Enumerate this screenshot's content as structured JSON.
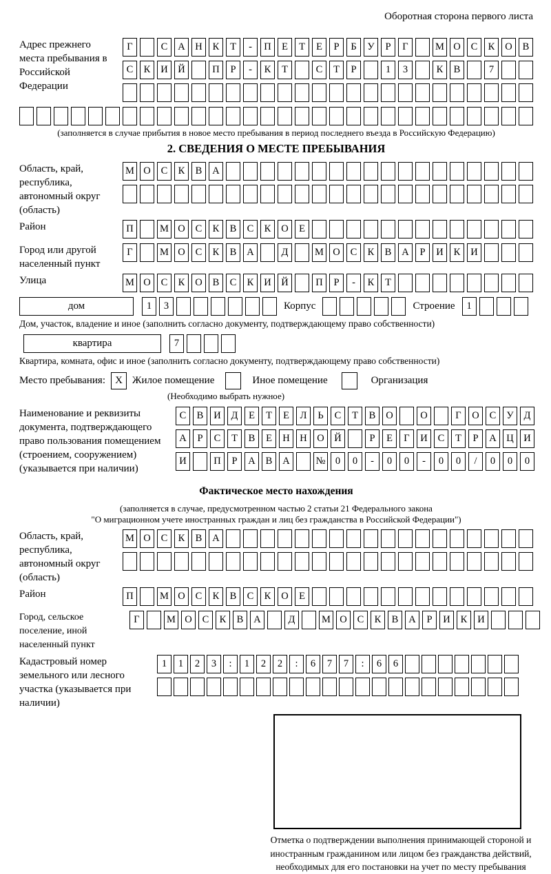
{
  "page": {
    "header_note": "Оборотная сторона первого листа"
  },
  "prev_address": {
    "label": "Адрес прежнего места пребывания в Российской Федерации",
    "row1": {
      "text": "Г САНКТ-ПЕТЕРБУРГ МОСКОВ",
      "len": 24
    },
    "row2": {
      "text": "СКИЙ ПР-КТ СТР 13 КВ 7",
      "len": 24
    },
    "row3": {
      "text": "",
      "len": 24
    },
    "row4": {
      "text": "",
      "len": 30
    },
    "note": "(заполняется в случае прибытия в новое место пребывания в период последнего въезда в Российскую Федерацию)"
  },
  "section2": {
    "title": "2. СВЕДЕНИЯ О МЕСТЕ ПРЕБЫВАНИЯ",
    "oblast": {
      "label": "Область, край, республика, автономный округ (область)",
      "row1": {
        "text": "МОСКВА",
        "len": 24
      },
      "row2": {
        "text": "",
        "len": 24
      }
    },
    "raion": {
      "label": "Район",
      "row1": {
        "text": "П МОСКВСКОЕ",
        "len": 24
      }
    },
    "gorod": {
      "label": "Город или другой населенный пункт",
      "row1": {
        "text": "Г МОСКВА Д МОСКВАРИКИ",
        "len": 24
      }
    },
    "ulitsa": {
      "label": "Улица",
      "row1": {
        "text": "МОСКОВСКИЙ ПР-КТ",
        "len": 24
      }
    },
    "dom": {
      "box_label": "дом",
      "cells": {
        "text": "13",
        "len": 8
      },
      "korpus_label": "Корпус",
      "korpus_cells": {
        "text": "",
        "len": 5
      },
      "stroenie_label": "Строение",
      "stroenie_cells": {
        "text": "1",
        "len": 4
      },
      "note": "Дом, участок, владение и иное (заполнить согласно документу, подтверждающему право собственности)"
    },
    "kvartira": {
      "box_label": "квартира",
      "cells": {
        "text": "7",
        "len": 4
      },
      "note": "Квартира, комната, офис и иное (заполнить согласно документу, подтверждающему право собственности)"
    },
    "mesto": {
      "label": "Место пребывания:",
      "cb1": {
        "text": "X",
        "len": 1
      },
      "opt1": "Жилое помещение",
      "cb2": {
        "text": "",
        "len": 1
      },
      "opt2": "Иное помещение",
      "cb3": {
        "text": "",
        "len": 1
      },
      "opt3": "Организация",
      "note": "(Необходимо выбрать нужное)"
    },
    "doc": {
      "label": "Наименование и реквизиты документа, подтверждающего право пользования помещением (строением, сооружением) (указывается при наличии)",
      "row1": {
        "text": "СВИДЕТЕЛЬСТВО О ГОСУД",
        "len": 21
      },
      "row2": {
        "text": "АРСТВЕННОЙ РЕГИСТРАЦИ",
        "len": 21
      },
      "row3": {
        "text": "И ПРАВА №00-00-00/000",
        "len": 21
      }
    }
  },
  "fact": {
    "title": "Фактическое место нахождения",
    "note1": "(заполняется в случае, предусмотренном частью 2 статьи 21 Федерального закона",
    "note2": "\"О миграционном учете иностранных граждан и лиц без гражданства в Российской Федерации\")",
    "oblast": {
      "label": "Область, край, республика, автономный округ (область)",
      "row1": {
        "text": "МОСКВА",
        "len": 24
      },
      "row2": {
        "text": "",
        "len": 24
      }
    },
    "raion": {
      "label": "Район",
      "row1": {
        "text": "П МОСКВСКОЕ",
        "len": 24
      }
    },
    "gorod": {
      "label": "Город, сельское поселение, иной населенный пункт",
      "row1": {
        "text": "Г МОСКВА Д МОСКВАРИКИ",
        "len": 24
      }
    },
    "kadastr": {
      "label": "Кадастровый номер земельного или лесного участка (указывается при наличии)",
      "row1": {
        "text": "1123:122:677:66",
        "len": 22
      },
      "row2": {
        "text": "",
        "len": 22
      }
    }
  },
  "stamp": {
    "note": "Отметка о подтверждении выполнения принимающей стороной и иностранным гражданином или лицом без гражданства действий, необходимых для его постановки на учет по месту пребывания"
  }
}
